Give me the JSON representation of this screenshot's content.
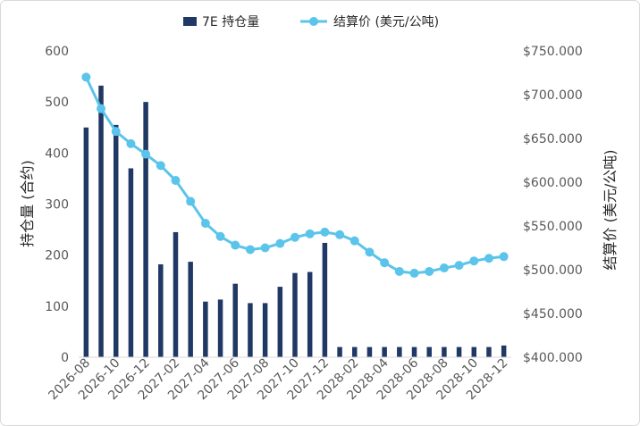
{
  "chart_data": {
    "type": "bar",
    "categories": [
      "2026-08",
      "2026-09",
      "2026-10",
      "2026-11",
      "2026-12",
      "2027-01",
      "2027-02",
      "2027-03",
      "2027-04",
      "2027-05",
      "2027-06",
      "2027-07",
      "2027-08",
      "2027-09",
      "2027-10",
      "2027-11",
      "2027-12",
      "2028-01",
      "2028-02",
      "2028-03",
      "2028-04",
      "2028-05",
      "2028-06",
      "2028-07",
      "2028-08",
      "2028-09",
      "2028-10",
      "2028-11",
      "2028-12"
    ],
    "xtick_labels": [
      "2026-08",
      "2026-10",
      "2026-12",
      "2027-02",
      "2027-04",
      "2027-06",
      "2027-08",
      "2027-10",
      "2027-12",
      "2028-02",
      "2028-04",
      "2028-06",
      "2028-08",
      "2028-10",
      "2028-12"
    ],
    "series": [
      {
        "name": "7E 持仓量",
        "type": "bar",
        "axis": "left",
        "color": "#203864",
        "values": [
          450,
          532,
          455,
          370,
          500,
          182,
          245,
          187,
          109,
          113,
          144,
          106,
          106,
          138,
          165,
          167,
          224,
          20,
          20,
          20,
          20,
          20,
          20,
          20,
          20,
          20,
          20,
          20,
          23
        ]
      },
      {
        "name": "结算价 (美元/公吨)",
        "type": "line",
        "axis": "right",
        "color": "#5bc4ea",
        "marker": "circle",
        "values": [
          720,
          684,
          658,
          644,
          632,
          619,
          602,
          578,
          553,
          538,
          528,
          523,
          525,
          530,
          537,
          541,
          543,
          540,
          533,
          520,
          508,
          498,
          496,
          498,
          502,
          505,
          510,
          513,
          515
        ]
      }
    ],
    "ylabel": "持仓量 (合约)",
    "y2label": "结算价 (美元/公吨)",
    "ylim": [
      0,
      600
    ],
    "yticks": [
      0,
      100,
      200,
      300,
      400,
      500,
      600
    ],
    "y2lim": [
      400,
      750
    ],
    "y2ticks": [
      400,
      450,
      500,
      550,
      600,
      650,
      700,
      750
    ],
    "y2tick_labels": [
      "$400.000",
      "$450.000",
      "$500.000",
      "$550.000",
      "$600.000",
      "$650.000",
      "$700.000",
      "$750.000"
    ],
    "legend": "top",
    "grid": false
  }
}
